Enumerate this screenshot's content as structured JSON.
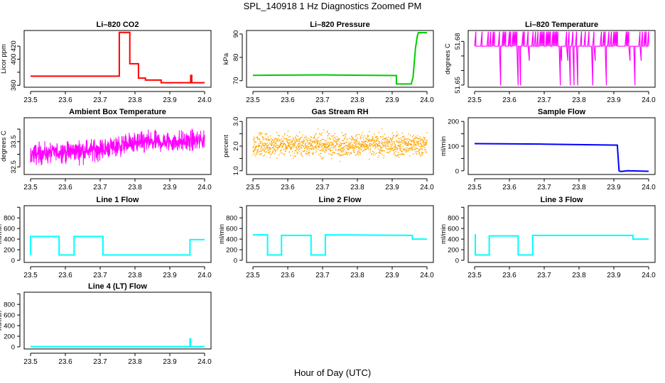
{
  "main_title": "SPL_140918  1 Hz Diagnostics Zoomed PM",
  "bottom_xlabel": "Hour of Day (UTC)",
  "chart_data": [
    {
      "type": "line",
      "id": "li820-co2",
      "title": "Li–820 CO2",
      "ylabel": "Licor ppm",
      "color": "#ff0000",
      "xlim": [
        23.5,
        24.0
      ],
      "ylim": [
        357,
        444
      ],
      "xticks": [
        "23.5",
        "23.6",
        "23.7",
        "23.8",
        "23.9",
        "24.0"
      ],
      "yticks": [
        360,
        380,
        400,
        420
      ],
      "ytick_labels": [
        "360",
        "",
        "400",
        "420"
      ],
      "y_rotated": true,
      "x": [
        23.5,
        23.755,
        23.755,
        23.785,
        23.785,
        23.81,
        23.81,
        23.83,
        23.83,
        23.875,
        23.875,
        23.96,
        23.96,
        23.963,
        23.963,
        24.0
      ],
      "y": [
        374,
        374,
        441,
        441,
        393,
        393,
        371,
        371,
        368,
        368,
        364,
        364,
        375,
        375,
        364,
        364
      ]
    },
    {
      "type": "line",
      "id": "li820-pressure",
      "title": "Li–820 Pressure",
      "ylabel": "kPa",
      "color": "#00cc00",
      "xlim": [
        23.5,
        24.0
      ],
      "ylim": [
        67.2,
        91.5
      ],
      "xticks": [
        "23.5",
        "23.6",
        "23.7",
        "23.8",
        "23.9",
        "24.0"
      ],
      "yticks": [
        70,
        80,
        90
      ],
      "ytick_labels": [
        "70",
        "80",
        "90"
      ],
      "y_rotated": true,
      "x": [
        23.5,
        23.7,
        23.912,
        23.912,
        23.955,
        23.96,
        23.967,
        23.972,
        23.975,
        24.0
      ],
      "y": [
        72.3,
        72.5,
        72.2,
        68.6,
        68.6,
        71.5,
        84,
        89,
        90.6,
        90.6
      ]
    },
    {
      "type": "line",
      "id": "li820-temperature",
      "title": "Li–820 Temperature",
      "ylabel": "degrees C",
      "color": "#ff00ff",
      "xlim": [
        23.5,
        24.0
      ],
      "ylim": [
        51.6485,
        51.6875
      ],
      "xticks": [
        "23.5",
        "23.6",
        "23.7",
        "23.8",
        "23.9",
        "24.0"
      ],
      "yticks": [
        51.65,
        51.66,
        51.67,
        51.68
      ],
      "ytick_labels": [
        "51.65",
        "",
        "",
        "51.68"
      ],
      "y_rotated": true,
      "base": 51.6767,
      "levels": [
        51.6867,
        51.6767,
        51.6667,
        51.6497
      ],
      "x_start": 23.5,
      "x_end": 24.0
    },
    {
      "type": "line",
      "id": "ambient-box-temperature",
      "title": "Ambient Box Temperature",
      "ylabel": "degrees C",
      "color": "#ff00ff",
      "xlim": [
        23.5,
        24.0
      ],
      "ylim": [
        32.2,
        34.45
      ],
      "xticks": [
        "23.5",
        "23.6",
        "23.7",
        "23.8",
        "23.9",
        "24.0"
      ],
      "yticks": [
        32.5,
        33.0,
        33.5,
        34.0
      ],
      "ytick_labels": [
        "32.5",
        "",
        "33.5",
        ""
      ],
      "y_rotated": true,
      "trend": [
        [
          23.5,
          33.0
        ],
        [
          23.7,
          33.2
        ],
        [
          23.8,
          33.45
        ],
        [
          24.0,
          33.55
        ]
      ],
      "x_start": 23.5,
      "x_end": 24.0
    },
    {
      "type": "scatter",
      "id": "gas-stream-rh",
      "title": "Gas Stream RH",
      "ylabel": "percent",
      "color": "#ffa500",
      "xlim": [
        23.5,
        24.0
      ],
      "ylim": [
        0.85,
        3.15
      ],
      "xticks": [
        "23.5",
        "23.6",
        "23.7",
        "23.8",
        "23.9",
        "24.0"
      ],
      "yticks": [
        1.0,
        1.5,
        2.0,
        2.5,
        3.0
      ],
      "ytick_labels": [
        "1.0",
        "",
        "2.0",
        "",
        "3.0"
      ],
      "y_rotated": true,
      "mean": 2.05,
      "x_start": 23.5,
      "x_end": 24.0
    },
    {
      "type": "line",
      "id": "sample-flow",
      "title": "Sample Flow",
      "ylabel": "ml/min",
      "color": "#0000ff",
      "xlim": [
        23.5,
        24.0
      ],
      "ylim": [
        -15,
        215
      ],
      "xticks": [
        "23.5",
        "23.6",
        "23.7",
        "23.8",
        "23.9",
        "24.0"
      ],
      "yticks": [
        0,
        50,
        100,
        150,
        200
      ],
      "ytick_labels": [
        "0",
        "",
        "100",
        "",
        "200"
      ],
      "y_rotated": false,
      "x": [
        23.5,
        23.7,
        23.91,
        23.915,
        23.92,
        23.94,
        24.0
      ],
      "y": [
        110,
        108,
        104,
        0,
        -3,
        0,
        -2
      ]
    },
    {
      "type": "line",
      "id": "line-1-flow",
      "title": "Line 1 Flow",
      "ylabel": "ml/min",
      "color": "#00ffff",
      "xlim": [
        23.5,
        24.0
      ],
      "ylim": [
        -40,
        1030
      ],
      "xticks": [
        "23.5",
        "23.6",
        "23.7",
        "23.8",
        "23.9",
        "24.0"
      ],
      "yticks": [
        0,
        200,
        400,
        600,
        800,
        1000
      ],
      "ytick_labels": [
        "0",
        "200",
        "400",
        "600",
        "800",
        ""
      ],
      "y_rotated": false,
      "x": [
        23.5,
        23.5,
        23.582,
        23.582,
        23.625,
        23.625,
        23.708,
        23.708,
        23.958,
        23.958,
        24.0
      ],
      "y": [
        100,
        450,
        450,
        100,
        100,
        450,
        450,
        100,
        100,
        390,
        390
      ]
    },
    {
      "type": "line",
      "id": "line-2-flow",
      "title": "Line 2 Flow",
      "ylabel": "ml/min",
      "color": "#00ffff",
      "xlim": [
        23.5,
        24.0
      ],
      "ylim": [
        -40,
        1030
      ],
      "xticks": [
        "23.5",
        "23.6",
        "23.7",
        "23.8",
        "23.9",
        "24.0"
      ],
      "yticks": [
        0,
        200,
        400,
        600,
        800,
        1000
      ],
      "ytick_labels": [
        "0",
        "200",
        "400",
        "600",
        "800",
        ""
      ],
      "y_rotated": false,
      "x": [
        23.5,
        23.542,
        23.542,
        23.582,
        23.582,
        23.667,
        23.667,
        23.708,
        23.708,
        23.958,
        23.958,
        24.0
      ],
      "y": [
        480,
        480,
        100,
        100,
        470,
        470,
        100,
        100,
        480,
        470,
        400,
        400
      ]
    },
    {
      "type": "line",
      "id": "line-3-flow",
      "title": "Line 3 Flow",
      "ylabel": "ml/min",
      "color": "#00ffff",
      "xlim": [
        23.5,
        24.0
      ],
      "ylim": [
        -40,
        1030
      ],
      "xticks": [
        "23.5",
        "23.6",
        "23.7",
        "23.8",
        "23.9",
        "24.0"
      ],
      "yticks": [
        0,
        200,
        400,
        600,
        800,
        1000
      ],
      "ytick_labels": [
        "0",
        "200",
        "400",
        "600",
        "800",
        ""
      ],
      "y_rotated": false,
      "x": [
        23.5,
        23.5,
        23.502,
        23.502,
        23.542,
        23.542,
        23.625,
        23.625,
        23.667,
        23.667,
        23.955,
        23.955,
        24.0
      ],
      "y": [
        480,
        480,
        480,
        100,
        100,
        460,
        460,
        100,
        100,
        470,
        470,
        400,
        400
      ]
    },
    {
      "type": "line",
      "id": "line-4-lt-flow",
      "title": "Line 4 (LT) Flow",
      "ylabel": "ml/min",
      "color": "#00ffff",
      "xlim": [
        23.5,
        24.0
      ],
      "ylim": [
        -40,
        1030
      ],
      "xticks": [
        "23.5",
        "23.6",
        "23.7",
        "23.8",
        "23.9",
        "24.0"
      ],
      "yticks": [
        0,
        200,
        400,
        600,
        800,
        1000
      ],
      "ytick_labels": [
        "0",
        "200",
        "400",
        "600",
        "800",
        ""
      ],
      "y_rotated": false,
      "x": [
        23.5,
        23.958,
        23.958,
        23.96,
        23.96,
        24.0
      ],
      "y": [
        5,
        5,
        150,
        150,
        5,
        5
      ]
    }
  ]
}
